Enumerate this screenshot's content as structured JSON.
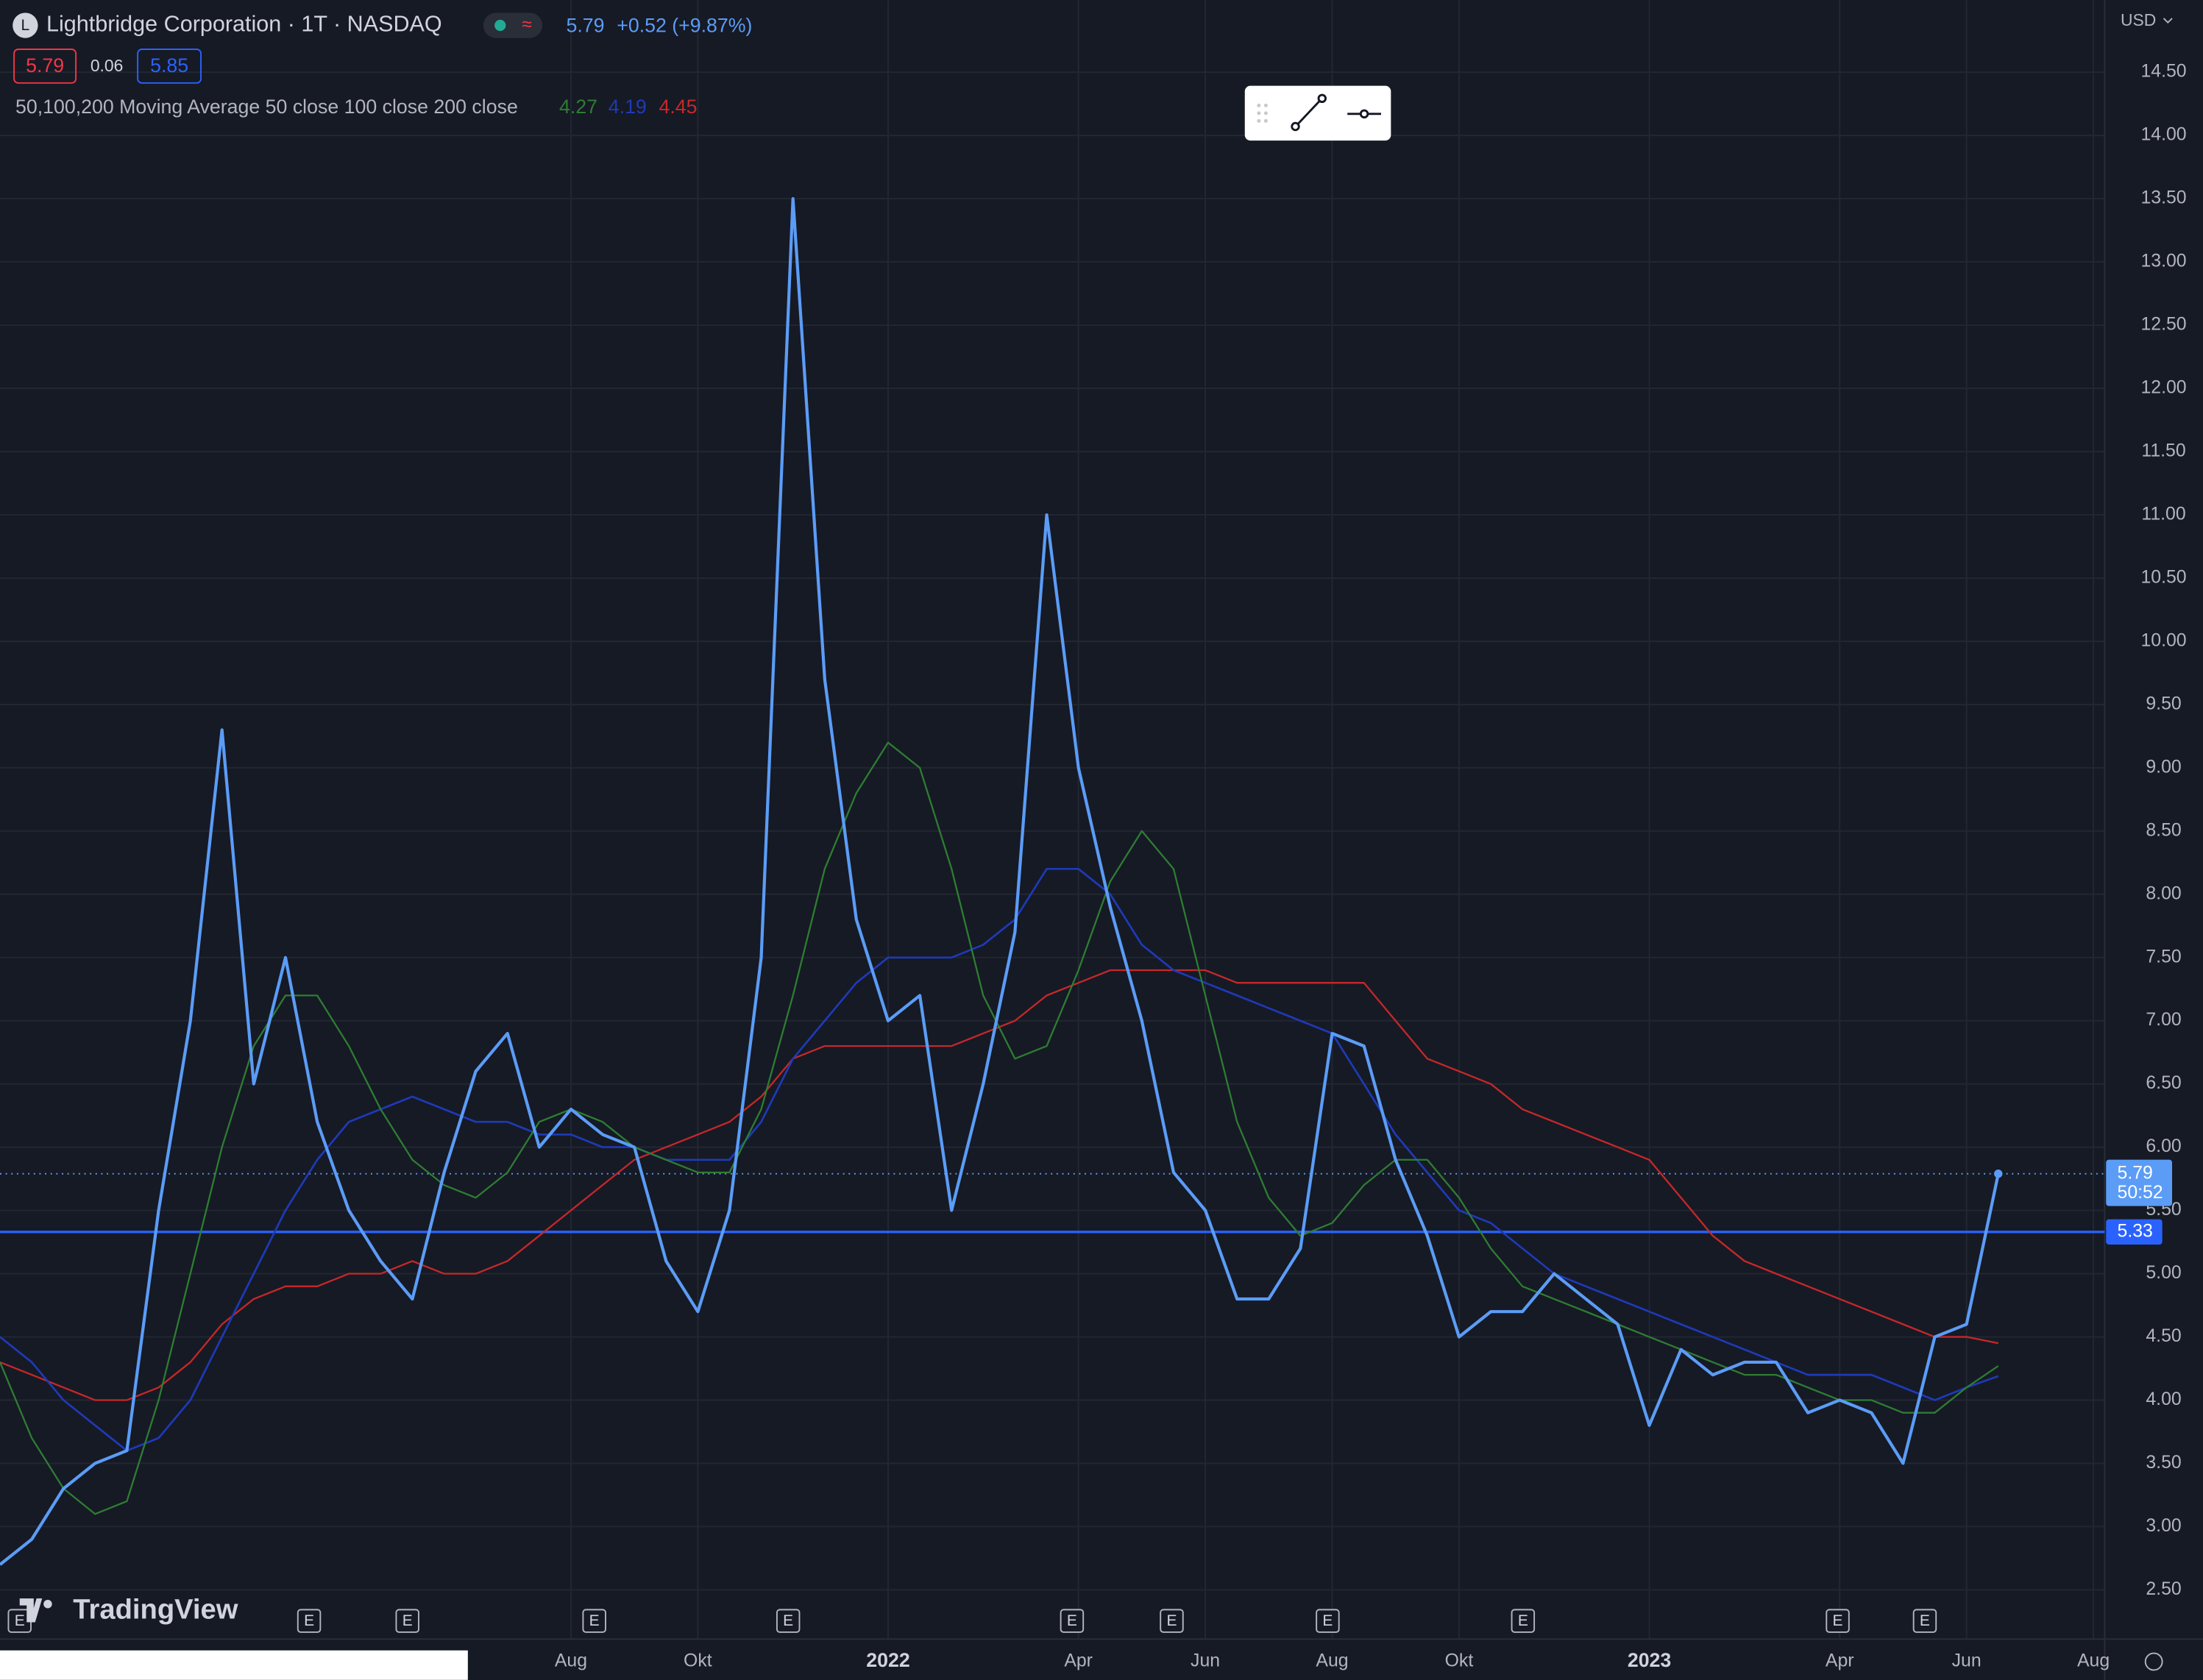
{
  "chart_data": {
    "type": "line",
    "title": "Lightbridge Corporation · 1T · NASDAQ",
    "price": {
      "last": "5.79",
      "change": "+0.52 (+9.87%)"
    },
    "quote": {
      "bid": "5.79",
      "spread": "0.06",
      "ask": "5.85"
    },
    "indicator_label": "50,100,200 Moving Average 50 close 100 close 200 close",
    "currency": "USD",
    "brand": "TradingView",
    "event_marker": "E",
    "countdown": "50:52",
    "categories": [
      null,
      null,
      null,
      null,
      null,
      null,
      null,
      null,
      null,
      null,
      null,
      null,
      null,
      null,
      null,
      null,
      null,
      null,
      "Aug",
      null,
      null,
      null,
      "Okt",
      null,
      null,
      null,
      null,
      null,
      "2022",
      null,
      null,
      null,
      null,
      null,
      "Apr",
      null,
      null,
      null,
      "Jun",
      null,
      null,
      null,
      "Aug",
      null,
      null,
      null,
      "Okt",
      null,
      null,
      null,
      null,
      null,
      "2023",
      null,
      null,
      null,
      null,
      null,
      "Apr",
      null,
      null,
      null,
      "Jun",
      null,
      null,
      null,
      "Aug"
    ],
    "series": [
      {
        "color": "#5b9cf6",
        "width": 2.2,
        "values": [
          2.7,
          2.9,
          3.3,
          3.5,
          3.6,
          5.5,
          7.0,
          9.3,
          6.5,
          7.5,
          6.2,
          5.5,
          5.1,
          4.8,
          5.8,
          6.6,
          6.9,
          6.0,
          6.3,
          6.1,
          6.0,
          5.1,
          4.7,
          5.5,
          7.5,
          13.5,
          9.7,
          7.8,
          7.0,
          7.2,
          5.5,
          6.5,
          7.7,
          11.0,
          9.0,
          7.9,
          7.0,
          5.8,
          5.5,
          4.8,
          4.8,
          5.2,
          6.9,
          6.8,
          5.9,
          5.3,
          4.5,
          4.7,
          4.7,
          5.0,
          4.8,
          4.6,
          3.8,
          4.4,
          4.2,
          4.3,
          4.3,
          3.9,
          4.0,
          3.9,
          3.5,
          4.5,
          4.6,
          5.79,
          null,
          null,
          null
        ]
      },
      {
        "color": "#2e7d32",
        "width": 1.2,
        "values": [
          4.3,
          3.7,
          3.3,
          3.1,
          3.2,
          4.0,
          5.0,
          6.0,
          6.8,
          7.2,
          7.2,
          6.8,
          6.3,
          5.9,
          5.7,
          5.6,
          5.8,
          6.2,
          6.3,
          6.2,
          6.0,
          5.9,
          5.8,
          5.8,
          6.3,
          7.2,
          8.2,
          8.8,
          9.2,
          9.0,
          8.2,
          7.2,
          6.7,
          6.8,
          7.4,
          8.1,
          8.5,
          8.2,
          7.2,
          6.2,
          5.6,
          5.3,
          5.4,
          5.7,
          5.9,
          5.9,
          5.6,
          5.2,
          4.9,
          4.8,
          4.7,
          4.6,
          4.5,
          4.4,
          4.3,
          4.2,
          4.2,
          4.1,
          4.0,
          4.0,
          3.9,
          3.9,
          4.1,
          4.27,
          null,
          null,
          null
        ]
      },
      {
        "color": "#1e3ab8",
        "width": 1.4,
        "values": [
          4.5,
          4.3,
          4.0,
          3.8,
          3.6,
          3.7,
          4.0,
          4.5,
          5.0,
          5.5,
          5.9,
          6.2,
          6.3,
          6.4,
          6.3,
          6.2,
          6.2,
          6.1,
          6.1,
          6.0,
          6.0,
          5.9,
          5.9,
          5.9,
          6.2,
          6.7,
          7.0,
          7.3,
          7.5,
          7.5,
          7.5,
          7.6,
          7.8,
          8.2,
          8.2,
          8.0,
          7.6,
          7.4,
          7.3,
          7.2,
          7.1,
          7.0,
          6.9,
          6.5,
          6.1,
          5.8,
          5.5,
          5.4,
          5.2,
          5.0,
          4.9,
          4.8,
          4.7,
          4.6,
          4.5,
          4.4,
          4.3,
          4.2,
          4.2,
          4.2,
          4.1,
          4.0,
          4.1,
          4.19,
          null,
          null,
          null
        ]
      },
      {
        "color": "#c62828",
        "width": 1.2,
        "values": [
          4.3,
          4.2,
          4.1,
          4.0,
          4.0,
          4.1,
          4.3,
          4.6,
          4.8,
          4.9,
          4.9,
          5.0,
          5.0,
          5.1,
          5.0,
          5.0,
          5.1,
          5.3,
          5.5,
          5.7,
          5.9,
          6.0,
          6.1,
          6.2,
          6.4,
          6.7,
          6.8,
          6.8,
          6.8,
          6.8,
          6.8,
          6.9,
          7.0,
          7.2,
          7.3,
          7.4,
          7.4,
          7.4,
          7.4,
          7.3,
          7.3,
          7.3,
          7.3,
          7.3,
          7.0,
          6.7,
          6.6,
          6.5,
          6.3,
          6.2,
          6.1,
          6.0,
          5.9,
          5.6,
          5.3,
          5.1,
          5.0,
          4.9,
          4.8,
          4.7,
          4.6,
          4.5,
          4.5,
          4.45,
          null,
          null,
          null
        ]
      }
    ],
    "hline": {
      "value": 5.33,
      "color": "#2962ff"
    },
    "ylim": [
      2.11,
      15.07
    ],
    "yticks": [
      {
        "value": 2.5,
        "label": "2.50"
      },
      {
        "value": 3,
        "label": "3.00"
      },
      {
        "value": 3.5,
        "label": "3.50"
      },
      {
        "value": 4,
        "label": "4.00"
      },
      {
        "value": 4.5,
        "label": "4.50"
      },
      {
        "value": 5,
        "label": "5.00"
      },
      {
        "value": 5.5,
        "label": "5.50"
      },
      {
        "value": 6,
        "label": "6.00"
      },
      {
        "value": 6.5,
        "label": "6.50"
      },
      {
        "value": 7,
        "label": "7.00"
      },
      {
        "value": 7.5,
        "label": "7.50"
      },
      {
        "value": 8,
        "label": "8.00"
      },
      {
        "value": 8.5,
        "label": "8.50"
      },
      {
        "value": 9,
        "label": "9.00"
      },
      {
        "value": 9.5,
        "label": "9.50"
      },
      {
        "value": 10,
        "label": "10.00"
      },
      {
        "value": 10.5,
        "label": "10.50"
      },
      {
        "value": 11,
        "label": "11.00"
      },
      {
        "value": 11.5,
        "label": "11.50"
      },
      {
        "value": 12,
        "label": "12.00"
      },
      {
        "value": 12.5,
        "label": "12.50"
      },
      {
        "value": 13,
        "label": "13.00"
      },
      {
        "value": 13.5,
        "label": "13.50"
      },
      {
        "value": 14,
        "label": "14.00"
      },
      {
        "value": 14.5,
        "label": "14.50"
      }
    ],
    "grid": true
  }
}
